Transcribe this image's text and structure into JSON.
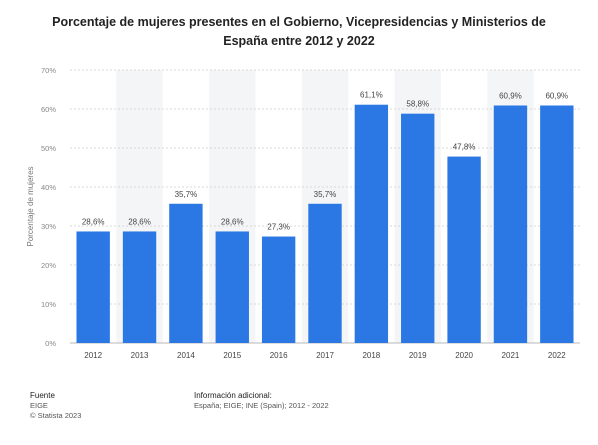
{
  "title_line1": "Porcentaje de mujeres presentes en el Gobierno, Vicepresidencias y Ministerios de",
  "title_line2": "España entre 2012 y 2022",
  "chart_data": {
    "type": "bar",
    "categories": [
      "2012",
      "2013",
      "2014",
      "2015",
      "2016",
      "2017",
      "2018",
      "2019",
      "2020",
      "2021",
      "2022"
    ],
    "values": [
      28.6,
      28.6,
      35.7,
      28.6,
      27.3,
      35.7,
      61.1,
      58.8,
      47.8,
      60.9,
      60.9
    ],
    "data_labels": [
      "28,6%",
      "28,6%",
      "35,7%",
      "28,6%",
      "27,3%",
      "35,7%",
      "61,1%",
      "58,8%",
      "47,8%",
      "60,9%",
      "60,9%"
    ],
    "ylabel": "Porcentaje de mujeres",
    "xlabel": "",
    "ylim": [
      0,
      70
    ],
    "yticks": [
      0,
      10,
      20,
      30,
      40,
      50,
      60,
      70
    ],
    "ytick_labels": [
      "0%",
      "10%",
      "20%",
      "30%",
      "40%",
      "50%",
      "60%",
      "70%"
    ],
    "grid": true,
    "bar_color": "#2b78e4",
    "alt_band_color": "#f4f5f7"
  },
  "footer": {
    "source_heading": "Fuente",
    "source_lines": [
      "EIGE",
      "© Statista 2023"
    ],
    "info_heading": "Información adicional:",
    "info_line": "España; EIGE; INE (Spain); 2012 - 2022"
  }
}
